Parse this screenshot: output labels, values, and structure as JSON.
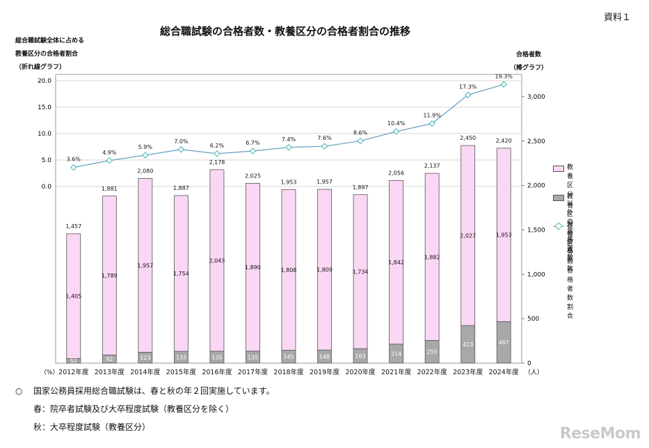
{
  "doc_label": "資料１",
  "chart_data": {
    "type": "bar",
    "title": "総合職試験の合格者数・教養区分の合格者割合の推移",
    "categories": [
      "2012年度",
      "2013年度",
      "2014年度",
      "2015年度",
      "2016年度",
      "2017年度",
      "2018年度",
      "2019年度",
      "2020年度",
      "2021年度",
      "2022年度",
      "2023年度",
      "2024年度"
    ],
    "series": [
      {
        "name": "教養区分の合格者数",
        "kind": "bar",
        "color": "#a8a8a8",
        "values": [
          52,
          92,
          123,
          133,
          135,
          135,
          145,
          148,
          163,
          214,
          255,
          423,
          467
        ],
        "labels": [
          "52",
          "92",
          "123",
          "133",
          "135",
          "135",
          "145",
          "148",
          "163",
          "214",
          "255",
          "423",
          "467"
        ]
      },
      {
        "name": "教養区分以外の合格者数",
        "kind": "bar",
        "color": "#fad7f5",
        "values": [
          1405,
          1789,
          1957,
          1754,
          2043,
          1890,
          1808,
          1809,
          1734,
          1842,
          1882,
          2027,
          1953
        ],
        "labels": [
          "1,405",
          "1,789",
          "1,957",
          "1,754",
          "2,043",
          "1,890",
          "1,808",
          "1,809",
          "1,734",
          "1,842",
          "1,882",
          "2,027",
          "1,953"
        ]
      },
      {
        "name": "教養区分の合格者数割合",
        "kind": "line",
        "axis": "left",
        "color": "#6aa3c8",
        "marker_color": "#4fb9b4",
        "values": [
          3.6,
          4.9,
          5.9,
          7.0,
          6.2,
          6.7,
          7.4,
          7.6,
          8.6,
          10.4,
          11.9,
          17.3,
          19.3
        ],
        "labels": [
          "3.6%",
          "4.9%",
          "5.9%",
          "7.0%",
          "6.2%",
          "6.7%",
          "7.4%",
          "7.6%",
          "8.6%",
          "10.4%",
          "11.9%",
          "17.3%",
          "19.3%"
        ]
      }
    ],
    "totals": [
      1457,
      1881,
      2080,
      1887,
      2178,
      2025,
      1953,
      1957,
      1897,
      2056,
      2137,
      2450,
      2420
    ],
    "total_labels": [
      "1,457",
      "1,881",
      "2,080",
      "1,887",
      "2,178",
      "2,025",
      "1,953",
      "1,957",
      "1,897",
      "2,056",
      "2,137",
      "2,450",
      "2,420"
    ],
    "left_axis": {
      "label_lines": [
        "総合職試験全体に占める",
        "教養区分の合格者割合",
        "（折れ線グラフ）"
      ],
      "unit": "（%）",
      "ticks": [
        0,
        5,
        10,
        15,
        20
      ],
      "tick_labels": [
        "0.0",
        "5.0",
        "10.0",
        "15.0",
        "20.0"
      ],
      "ylim": [
        0,
        20
      ]
    },
    "right_axis": {
      "label_lines": [
        "合格者数",
        "（棒グラフ）"
      ],
      "unit": "（人）",
      "ticks": [
        0,
        500,
        1000,
        1500,
        2000,
        2500,
        3000
      ],
      "tick_labels": [
        "0",
        "500",
        "1,000",
        "1,500",
        "2,000",
        "2,500",
        "3,000"
      ],
      "ylim": [
        0,
        3250
      ]
    },
    "legend_position": "right",
    "grid": true
  },
  "legend": [
    {
      "key": "other",
      "text": "教養区分以外の\n合格者数",
      "color": "#fad7f5"
    },
    {
      "key": "kyoyo",
      "text": "教養区分の\n合格者数",
      "color": "#a8a8a8"
    },
    {
      "key": "ratio",
      "text": "教養区分の\n合格者数割合",
      "color": "#6aa3c8"
    }
  ],
  "notes": {
    "bullet": "○",
    "line1": "国家公務員採用総合職試験は、春と秋の年２回実施しています。",
    "line2": "春：院卒者試験及び大卒程度試験（教養区分を除く）",
    "line3": "秋：大卒程度試験（教養区分）"
  },
  "watermark": "ReseMom"
}
